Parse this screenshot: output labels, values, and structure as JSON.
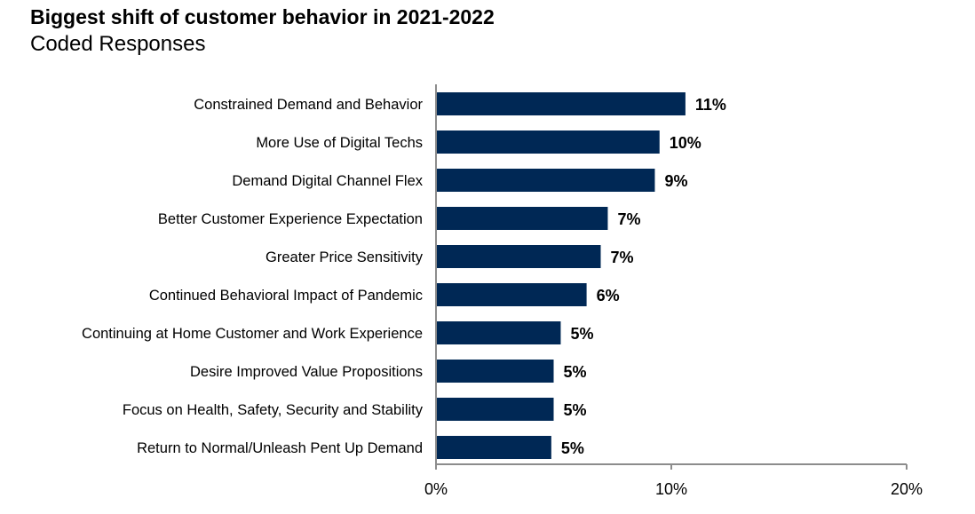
{
  "chart_data": {
    "type": "bar",
    "orientation": "horizontal",
    "title": "Biggest shift of customer behavior in 2021-2022",
    "subtitle": "Coded Responses",
    "categories": [
      "Constrained Demand and Behavior",
      "More Use of Digital Techs",
      "Demand Digital Channel Flex",
      "Better Customer Experience Expectation",
      "Greater Price Sensitivity",
      "Continued Behavioral Impact of Pandemic",
      "Continuing at Home Customer and Work Experience",
      "Desire Improved Value Propositions",
      "Focus on Health, Safety, Security and Stability",
      "Return to Normal/Unleash Pent Up Demand"
    ],
    "values": [
      10.6,
      9.5,
      9.3,
      7.3,
      7.0,
      6.4,
      5.3,
      5.0,
      5.0,
      4.9
    ],
    "value_labels": [
      "11%",
      "10%",
      "9%",
      "7%",
      "7%",
      "6%",
      "5%",
      "5%",
      "5%",
      "5%"
    ],
    "xlim": [
      0,
      20
    ],
    "x_ticks": [
      0,
      10,
      20
    ],
    "x_tick_labels": [
      "0%",
      "10%",
      "20%"
    ],
    "xlabel": "",
    "ylabel": "",
    "grid": false,
    "bar_color": "#002855",
    "axis_color": "#8c8c8c"
  }
}
